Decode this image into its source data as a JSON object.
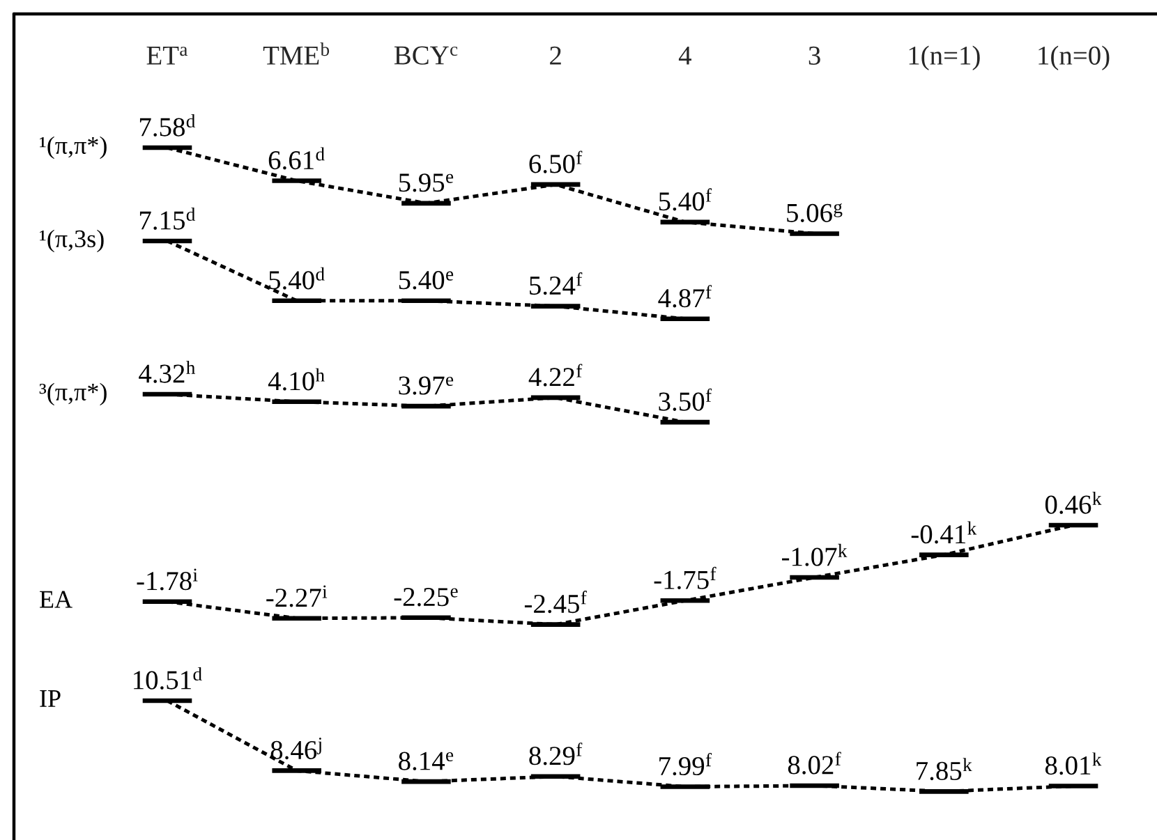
{
  "chart_data": [
    {
      "type": "line",
      "categories": [
        "ET$^{a}$",
        "TME$^{b}$",
        "BCY$^{c}$",
        "2",
        "4",
        "3",
        "1(n=1)",
        "1(n=0)"
      ],
      "tick_labels": "x",
      "line_style": "dashed",
      "series": [
        {
          "name": "¹(π,π*)",
          "color": "#000000",
          "values": [
            7.58,
            6.61,
            5.95,
            6.5,
            5.4,
            5.06,
            null,
            null
          ],
          "value_labels": [
            "7.58$^{d}$",
            "6.61$^{d}$",
            "5.95$^{e}$",
            "6.50$^{f}$",
            "5.40$^{f}$",
            "5.06$^{g}$",
            null,
            null
          ]
        }
      ]
    },
    {
      "type": "line",
      "categories": [
        null,
        null,
        null,
        null,
        null,
        null,
        null,
        null
      ],
      "line_style": "dashed",
      "series": [
        {
          "name": "¹(π,3s)",
          "color": "#000000",
          "values": [
            7.15,
            5.4,
            5.4,
            5.24,
            4.87,
            null,
            null,
            null
          ],
          "value_labels": [
            "7.15$^{d}$",
            "5.40$^{d}$",
            "5.40$^{e}$",
            "5.24$^{f}$",
            "4.87$^{f}$",
            null,
            null,
            null
          ]
        }
      ]
    },
    {
      "type": "line",
      "categories": [
        null,
        null,
        null,
        null,
        null,
        null,
        null,
        null
      ],
      "line_style": "dashed",
      "series": [
        {
          "name": "³(π,π*)",
          "color": "#000000",
          "values": [
            4.32,
            4.1,
            3.97,
            4.22,
            3.5,
            null,
            null,
            null
          ],
          "value_labels": [
            "4.32$^{h}$",
            "4.10$^{h}$",
            "3.97$^{e}$",
            "4.22$^{f}$",
            "3.50$^{f}$",
            null,
            null,
            null
          ]
        }
      ]
    },
    {
      "type": "line",
      "categories": [
        null,
        null,
        null,
        null,
        null,
        null,
        null,
        null
      ],
      "line_style": "dashed",
      "series": [
        {
          "name": "EA",
          "color": "#000000",
          "values": [
            -1.78,
            -2.27,
            -2.25,
            -2.45,
            -1.75,
            -1.07,
            -0.41,
            0.46
          ],
          "value_labels": [
            "-1.78$^{i}$",
            "-2.27$^{i}$",
            "-2.25$^{e}$",
            "-2.45$^{f}$",
            "-1.75$^{f}$",
            "-1.07$^{k}$",
            "-0.41$^{k}$",
            "0.46$^{k}$"
          ]
        }
      ]
    },
    {
      "type": "line",
      "categories": [
        null,
        null,
        null,
        null,
        null,
        null,
        null,
        null
      ],
      "line_style": "dashed",
      "series": [
        {
          "name": "IP",
          "color": "#000000",
          "values": [
            10.51,
            8.46,
            8.14,
            8.29,
            7.99,
            8.02,
            7.85,
            8.01
          ],
          "value_labels": [
            "10.51$^{d}$",
            "8.46$^{j}$",
            "8.14$^{e}$",
            "8.29$^{f}$",
            "7.99$^{f}$",
            "8.02$^{f}$",
            "7.85$^{k}$",
            "8.01$^{k}$"
          ]
        }
      ]
    }
  ]
}
